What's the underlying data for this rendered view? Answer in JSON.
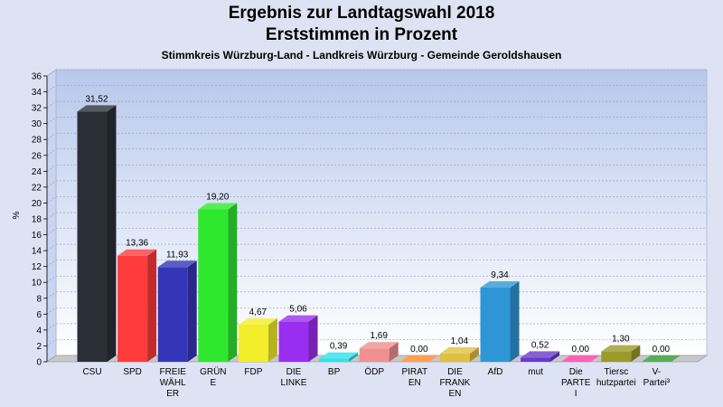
{
  "chart_data": {
    "type": "bar",
    "title": "Ergebnis zur Landtagswahl 2018",
    "subtitle": "Erststimmen in Prozent",
    "subsubtitle": "Stimmkreis Würzburg-Land - Landkreis Würzburg - Gemeinde Geroldshausen",
    "ylabel": "%",
    "ylim": [
      0,
      36
    ],
    "yticks": [
      0,
      2,
      4,
      6,
      8,
      10,
      12,
      14,
      16,
      18,
      20,
      22,
      24,
      26,
      28,
      30,
      32,
      34,
      36
    ],
    "categories": [
      [
        "CSU"
      ],
      [
        "SPD"
      ],
      [
        "FREIE",
        "WÄHL",
        "ER"
      ],
      [
        "GRÜN",
        "E"
      ],
      [
        "FDP"
      ],
      [
        "DIE",
        "LINKE"
      ],
      [
        "BP"
      ],
      [
        "ÖDP"
      ],
      [
        "PIRAT",
        "EN"
      ],
      [
        "DIE",
        "FRANK",
        "EN"
      ],
      [
        "AfD"
      ],
      [
        "mut"
      ],
      [
        "Die",
        "PARTE",
        "I"
      ],
      [
        "Tiersc",
        "hutzpartei"
      ],
      [
        "V-",
        "Partei³"
      ]
    ],
    "values": [
      31.52,
      13.36,
      11.93,
      19.2,
      4.67,
      5.06,
      0.39,
      1.69,
      0.0,
      1.04,
      9.34,
      0.52,
      0.0,
      1.3,
      0.0
    ],
    "value_labels": [
      "31,52",
      "13,36",
      "11,93",
      "19,20",
      "4,67",
      "5,06",
      "0,39",
      "1,69",
      "0,00",
      "1,04",
      "9,34",
      "0,52",
      "0,00",
      "1,30",
      "0,00"
    ],
    "colors": [
      "#2b2f38",
      "#ff3b3b",
      "#3535b8",
      "#2ee82e",
      "#f2ee2a",
      "#9a2ef0",
      "#30e0e8",
      "#f09090",
      "#ff8a25",
      "#e0c040",
      "#2f96d6",
      "#6a38cc",
      "#ff3aa0",
      "#9a9a2a",
      "#2a9a2a"
    ],
    "grid": true
  }
}
